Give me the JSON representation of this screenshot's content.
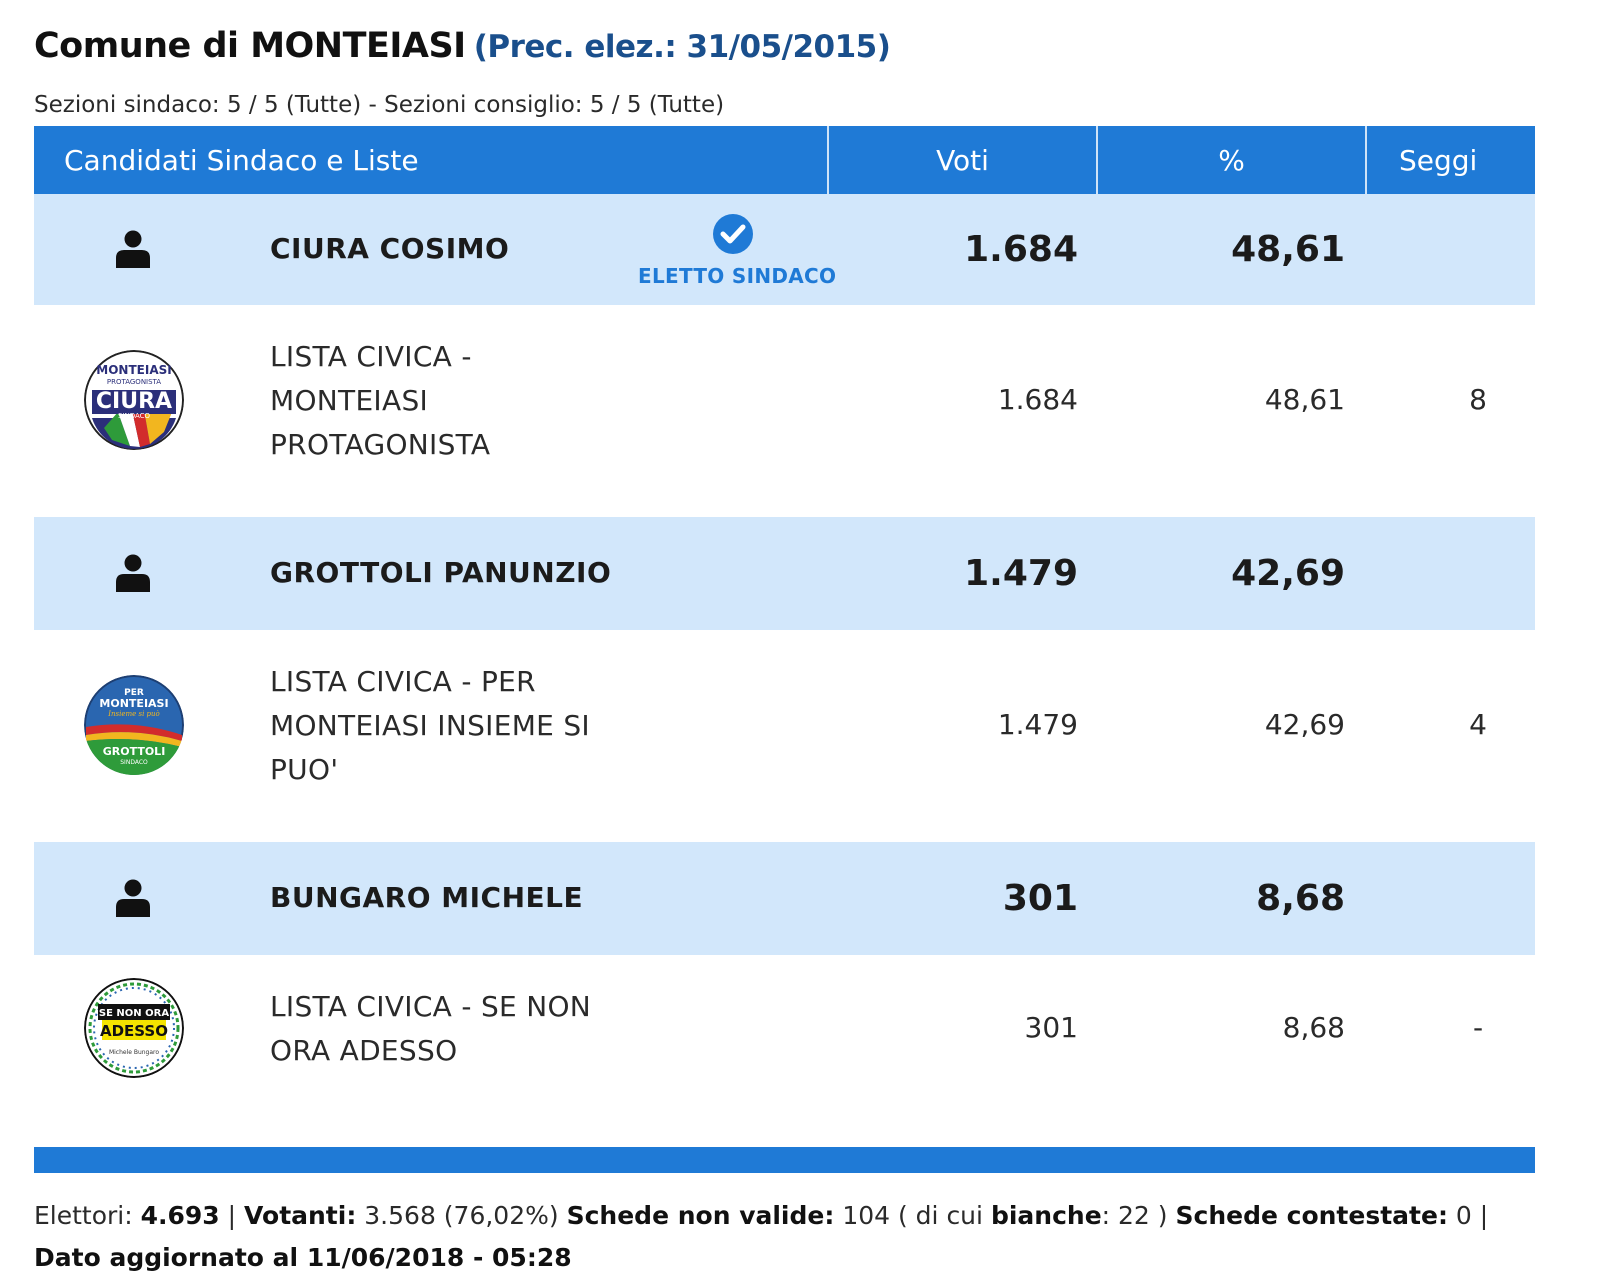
{
  "page": {
    "title": "Comune di MONTEIASI",
    "prec": "(Prec. elez.: 31/05/2015)",
    "sezioni": "Sezioni sindaco: 5 / 5 (Tutte) - Sezioni consiglio: 5 / 5 (Tutte)"
  },
  "table": {
    "headers": {
      "candidati": "Candidati Sindaco e Liste",
      "voti": "Voti",
      "perc": "%",
      "seggi": "Seggi"
    },
    "candidates": [
      {
        "name": "CIURA COSIMO",
        "voti": "1.684",
        "perc": "48,61",
        "eletto_label": "ELETTO SINDACO",
        "list": {
          "name": "LISTA CIVICA - MONTEIASI PROTAGONISTA",
          "voti": "1.684",
          "perc": "48,61",
          "seggi": "8",
          "logo": {
            "line1": "MONTEIASI",
            "line2": "PROTAGONISTA",
            "line3": "CIURA",
            "line4": "SINDACO"
          }
        }
      },
      {
        "name": "GROTTOLI PANUNZIO",
        "voti": "1.479",
        "perc": "42,69",
        "list": {
          "name": "LISTA CIVICA - PER MONTEIASI INSIEME SI PUO'",
          "voti": "1.479",
          "perc": "42,69",
          "seggi": "4",
          "logo": {
            "line1": "PER",
            "line2": "MONTEIASI",
            "line3": "Insieme si può",
            "line4": "GROTTOLI",
            "line5": "SINDACO"
          }
        }
      },
      {
        "name": "BUNGARO MICHELE",
        "voti": "301",
        "perc": "8,68",
        "list": {
          "name": "LISTA CIVICA - SE NON ORA ADESSO",
          "voti": "301",
          "perc": "8,68",
          "seggi": "-",
          "logo": {
            "line1": "SE NON ORA",
            "line2": "ADESSO",
            "line3": "Michele Bungaro"
          }
        }
      }
    ]
  },
  "footer": {
    "elettori_label": "Elettori:",
    "elettori": "4.693",
    "votanti_label": "Votanti:",
    "votanti": "3.568 (76,02%)",
    "non_valide_label": "Schede non valide:",
    "non_valide": "104 ( di cui",
    "bianche_label": "bianche",
    "bianche": ": 22 )",
    "contestate_label": "Schede contestate:",
    "contestate": "0",
    "aggiornato_label": "Dato aggiornato al 11/06/2018 - 05:28"
  },
  "colors": {
    "header_blue": "#1f7ad6",
    "candidate_row_bg": "#d2e7fb",
    "title_blue": "#1a4f8c"
  },
  "icons": {
    "candidate": "user-icon",
    "elected": "check-circle-icon"
  }
}
